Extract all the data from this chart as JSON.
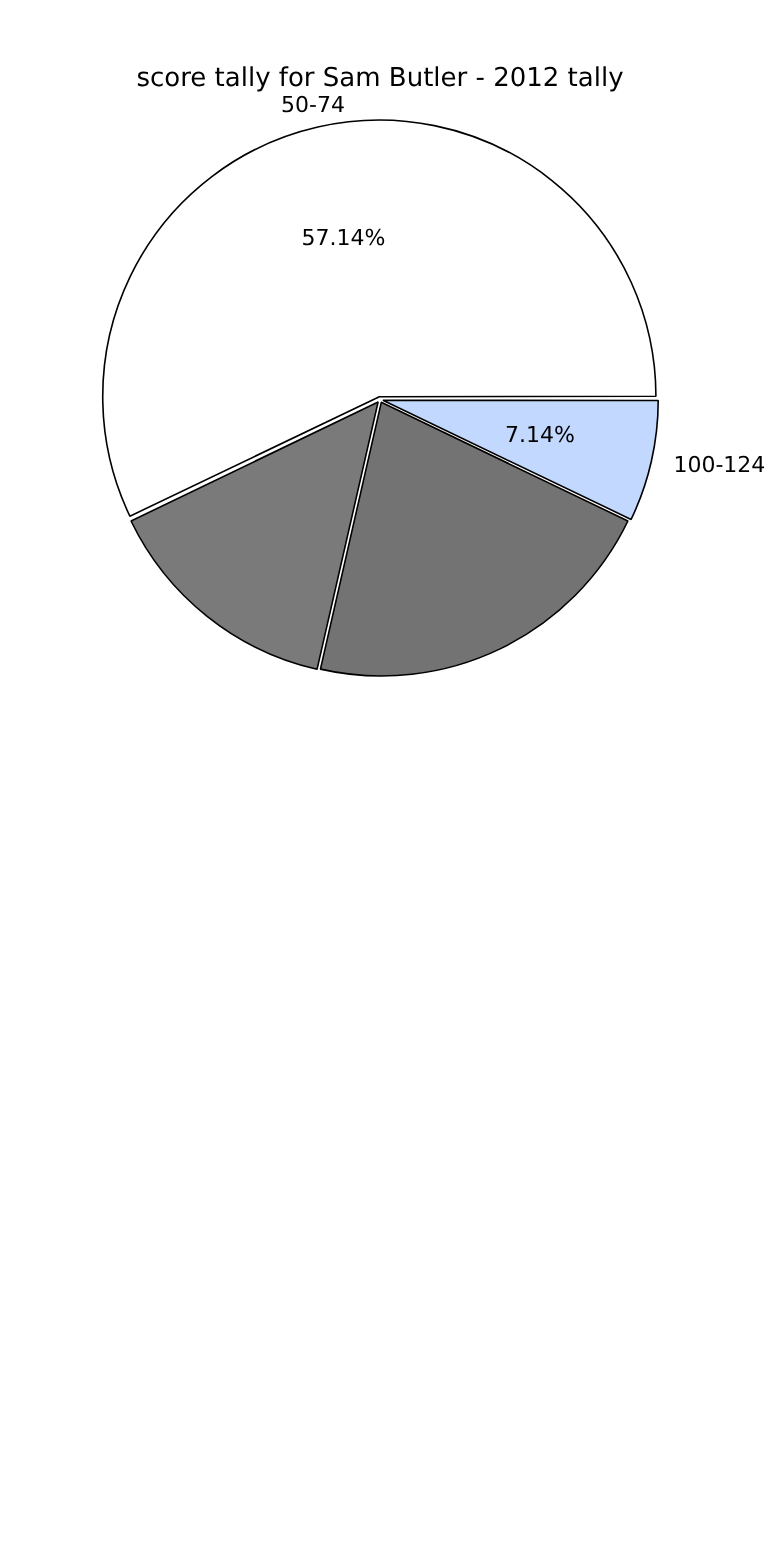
{
  "chart_data": {
    "type": "pie",
    "title": "score tally for Sam Butler - 2012 tally",
    "categories": [
      "100-124",
      null,
      null,
      "50-74"
    ],
    "values": [
      7.14,
      21.43,
      14.29,
      57.14
    ],
    "colors": [
      "#c2d8ff",
      "#737373",
      "#7a7a7a",
      "#ffffff"
    ],
    "value_labels": [
      "7.14%",
      null,
      null,
      "57.14%"
    ],
    "legend": false
  }
}
